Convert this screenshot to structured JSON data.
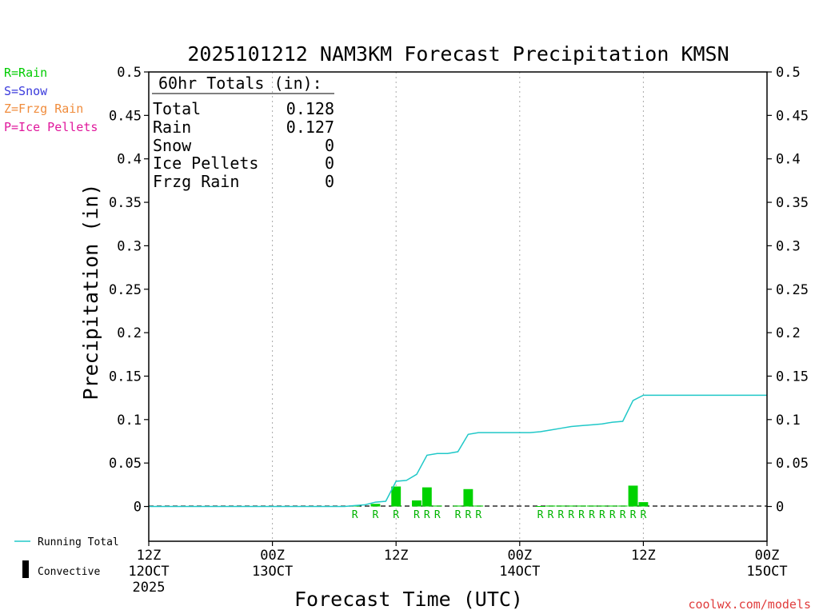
{
  "chart_data": {
    "type": "bar",
    "title": "2025101212 NAM3KM Forecast Precipitation KMSN",
    "xlabel": "Forecast Time (UTC)",
    "ylabel": "Precipitation (in)",
    "ylim": [
      -0.04,
      0.5
    ],
    "xlim_hours": [
      0,
      60
    ],
    "yticks": [
      {
        "value": 0.5,
        "label": "0.5"
      },
      {
        "value": 0.45,
        "label": "0.45"
      },
      {
        "value": 0.4,
        "label": "0.4"
      },
      {
        "value": 0.35,
        "label": "0.35"
      },
      {
        "value": 0.3,
        "label": "0.3"
      },
      {
        "value": 0.25,
        "label": "0.25"
      },
      {
        "value": 0.2,
        "label": "0.2"
      },
      {
        "value": 0.15,
        "label": "0.15"
      },
      {
        "value": 0.1,
        "label": "0.1"
      },
      {
        "value": 0.05,
        "label": "0.05"
      },
      {
        "value": 0,
        "label": "0"
      }
    ],
    "xticks": [
      {
        "hour": 0,
        "label": "12Z",
        "sub": "12OCT",
        "sub2": "2025"
      },
      {
        "hour": 12,
        "label": "00Z",
        "sub": "13OCT",
        "sub2": ""
      },
      {
        "hour": 24,
        "label": "12Z",
        "sub": "",
        "sub2": ""
      },
      {
        "hour": 36,
        "label": "00Z",
        "sub": "14OCT",
        "sub2": ""
      },
      {
        "hour": 48,
        "label": "12Z",
        "sub": "",
        "sub2": ""
      },
      {
        "hour": 60,
        "label": "00Z",
        "sub": "15OCT",
        "sub2": ""
      }
    ],
    "gridlines_hours": [
      12,
      24,
      36,
      48
    ],
    "bars": [
      {
        "hour": 20,
        "value": 0.001,
        "type": "R"
      },
      {
        "hour": 22,
        "value": 0.003,
        "type": "R"
      },
      {
        "hour": 24,
        "value": 0.023,
        "type": "R"
      },
      {
        "hour": 26,
        "value": 0.007,
        "type": "R"
      },
      {
        "hour": 27,
        "value": 0.022,
        "type": "R"
      },
      {
        "hour": 28,
        "value": 0.001,
        "type": "R"
      },
      {
        "hour": 30,
        "value": 0.001,
        "type": "R"
      },
      {
        "hour": 31,
        "value": 0.02,
        "type": "R"
      },
      {
        "hour": 32,
        "value": 0.001,
        "type": "R"
      },
      {
        "hour": 38,
        "value": 0.0005,
        "type": "R"
      },
      {
        "hour": 39,
        "value": 0.001,
        "type": "R"
      },
      {
        "hour": 40,
        "value": 0.001,
        "type": "R"
      },
      {
        "hour": 41,
        "value": 0.001,
        "type": "R"
      },
      {
        "hour": 42,
        "value": 0.001,
        "type": "R"
      },
      {
        "hour": 43,
        "value": 0.001,
        "type": "R"
      },
      {
        "hour": 44,
        "value": 0.001,
        "type": "R"
      },
      {
        "hour": 45,
        "value": 0.001,
        "type": "R"
      },
      {
        "hour": 46,
        "value": 0.001,
        "type": "R"
      },
      {
        "hour": 47,
        "value": 0.024,
        "type": "R"
      },
      {
        "hour": 48,
        "value": 0.005,
        "type": "R"
      }
    ],
    "running_total": {
      "name": "Running Total",
      "points": [
        [
          0,
          0
        ],
        [
          19,
          0
        ],
        [
          20,
          0.001
        ],
        [
          21,
          0.002
        ],
        [
          22,
          0.005
        ],
        [
          23,
          0.006
        ],
        [
          24,
          0.029
        ],
        [
          25,
          0.03
        ],
        [
          26,
          0.037
        ],
        [
          27,
          0.059
        ],
        [
          28,
          0.061
        ],
        [
          29,
          0.061
        ],
        [
          30,
          0.063
        ],
        [
          31,
          0.083
        ],
        [
          32,
          0.085
        ],
        [
          37,
          0.085
        ],
        [
          38,
          0.086
        ],
        [
          39,
          0.088
        ],
        [
          40,
          0.09
        ],
        [
          41,
          0.092
        ],
        [
          42,
          0.093
        ],
        [
          43,
          0.094
        ],
        [
          44,
          0.095
        ],
        [
          45,
          0.097
        ],
        [
          46,
          0.098
        ],
        [
          47,
          0.122
        ],
        [
          48,
          0.128
        ],
        [
          60,
          0.128
        ]
      ]
    },
    "legend": {
      "precip_types": [
        {
          "label": "R=Rain",
          "color": "#00cc00"
        },
        {
          "label": "S=Snow",
          "color": "#3b3bdc"
        },
        {
          "label": "Z=Frzg Rain",
          "color": "#f08c3c"
        },
        {
          "label": "P=Ice Pellets",
          "color": "#e0189c"
        }
      ],
      "running_total_label": "Running Total",
      "convective_label": "Convective"
    },
    "totals": {
      "header": "60hr Totals (in):",
      "rows": [
        {
          "label": "Total",
          "value": "0.128"
        },
        {
          "label": "Rain",
          "value": "0.127"
        },
        {
          "label": "Snow",
          "value": "0"
        },
        {
          "label": "Ice Pellets",
          "value": "0"
        },
        {
          "label": "Frzg Rain",
          "value": "0"
        }
      ]
    },
    "colors": {
      "bar": "#00d200",
      "running_total": "#20c8c8",
      "type_label": "#00b400",
      "grid": "#aaaaaa",
      "credit": "#e03c3c"
    }
  },
  "credit": "coolwx.com/models"
}
